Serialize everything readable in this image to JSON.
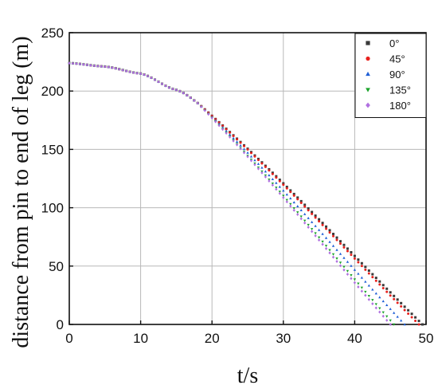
{
  "chart_data": {
    "type": "scatter",
    "xlabel": "t/s",
    "ylabel": "distance from pin to end of leg (m)",
    "xlim": [
      0,
      50
    ],
    "ylim": [
      0,
      250
    ],
    "xticks": [
      "0",
      "10",
      "20",
      "30",
      "40",
      "50"
    ],
    "yticks": [
      "0",
      "50",
      "100",
      "150",
      "200",
      "250"
    ],
    "grid": true,
    "legend_position": "top-right",
    "series": [
      {
        "name": "0°",
        "color": "#3a3a3a",
        "marker": "square",
        "t_end": 49.5
      },
      {
        "name": "45°",
        "color": "#e8201c",
        "marker": "circle",
        "t_end": 49.0
      },
      {
        "name": "90°",
        "color": "#1f5fd6",
        "marker": "triangle-up",
        "t_end": 47.0
      },
      {
        "name": "135°",
        "color": "#1aa32a",
        "marker": "triangle-down",
        "t_end": 45.5
      },
      {
        "name": "180°",
        "color": "#b070e0",
        "marker": "diamond",
        "t_end": 45.0
      }
    ],
    "shared_curve": {
      "start_value": 224,
      "dt": 0.5,
      "anchor_points": [
        {
          "t": 0,
          "value": 224
        },
        {
          "t": 5,
          "value": 221
        },
        {
          "t": 10,
          "value": 215
        },
        {
          "t": 15,
          "value": 201
        },
        {
          "t": 20,
          "value": 183
        }
      ]
    }
  }
}
